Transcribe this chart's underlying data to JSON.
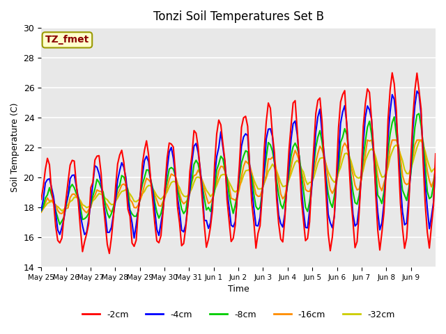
{
  "title": "Tonzi Soil Temperatures Set B",
  "xlabel": "Time",
  "ylabel": "Soil Temperature (C)",
  "ylim": [
    14,
    30
  ],
  "annotation_label": "TZ_fmet",
  "annotation_color": "#8B0000",
  "annotation_bg": "#FFFFCC",
  "bg_color": "#E8E8E8",
  "line_colors": {
    "-2cm": "#FF0000",
    "-4cm": "#0000FF",
    "-8cm": "#00CC00",
    "-16cm": "#FF8C00",
    "-32cm": "#CCCC00"
  },
  "legend_labels": [
    "-2cm",
    "-4cm",
    "-8cm",
    "-16cm",
    "-32cm"
  ],
  "tick_labels": [
    "May 25",
    "May 26",
    "May 27",
    "May 28",
    "May 29",
    "May 30",
    "May 31",
    "Jun 1",
    "Jun 2",
    "Jun 3",
    "Jun 4",
    "Jun 5",
    "Jun 6",
    "Jun 7",
    "Jun 8",
    "Jun 9"
  ],
  "yticks": [
    14,
    16,
    18,
    20,
    22,
    24,
    26,
    28,
    30
  ],
  "n_days": 16,
  "points_per_day": 12,
  "linewidth": 1.5
}
